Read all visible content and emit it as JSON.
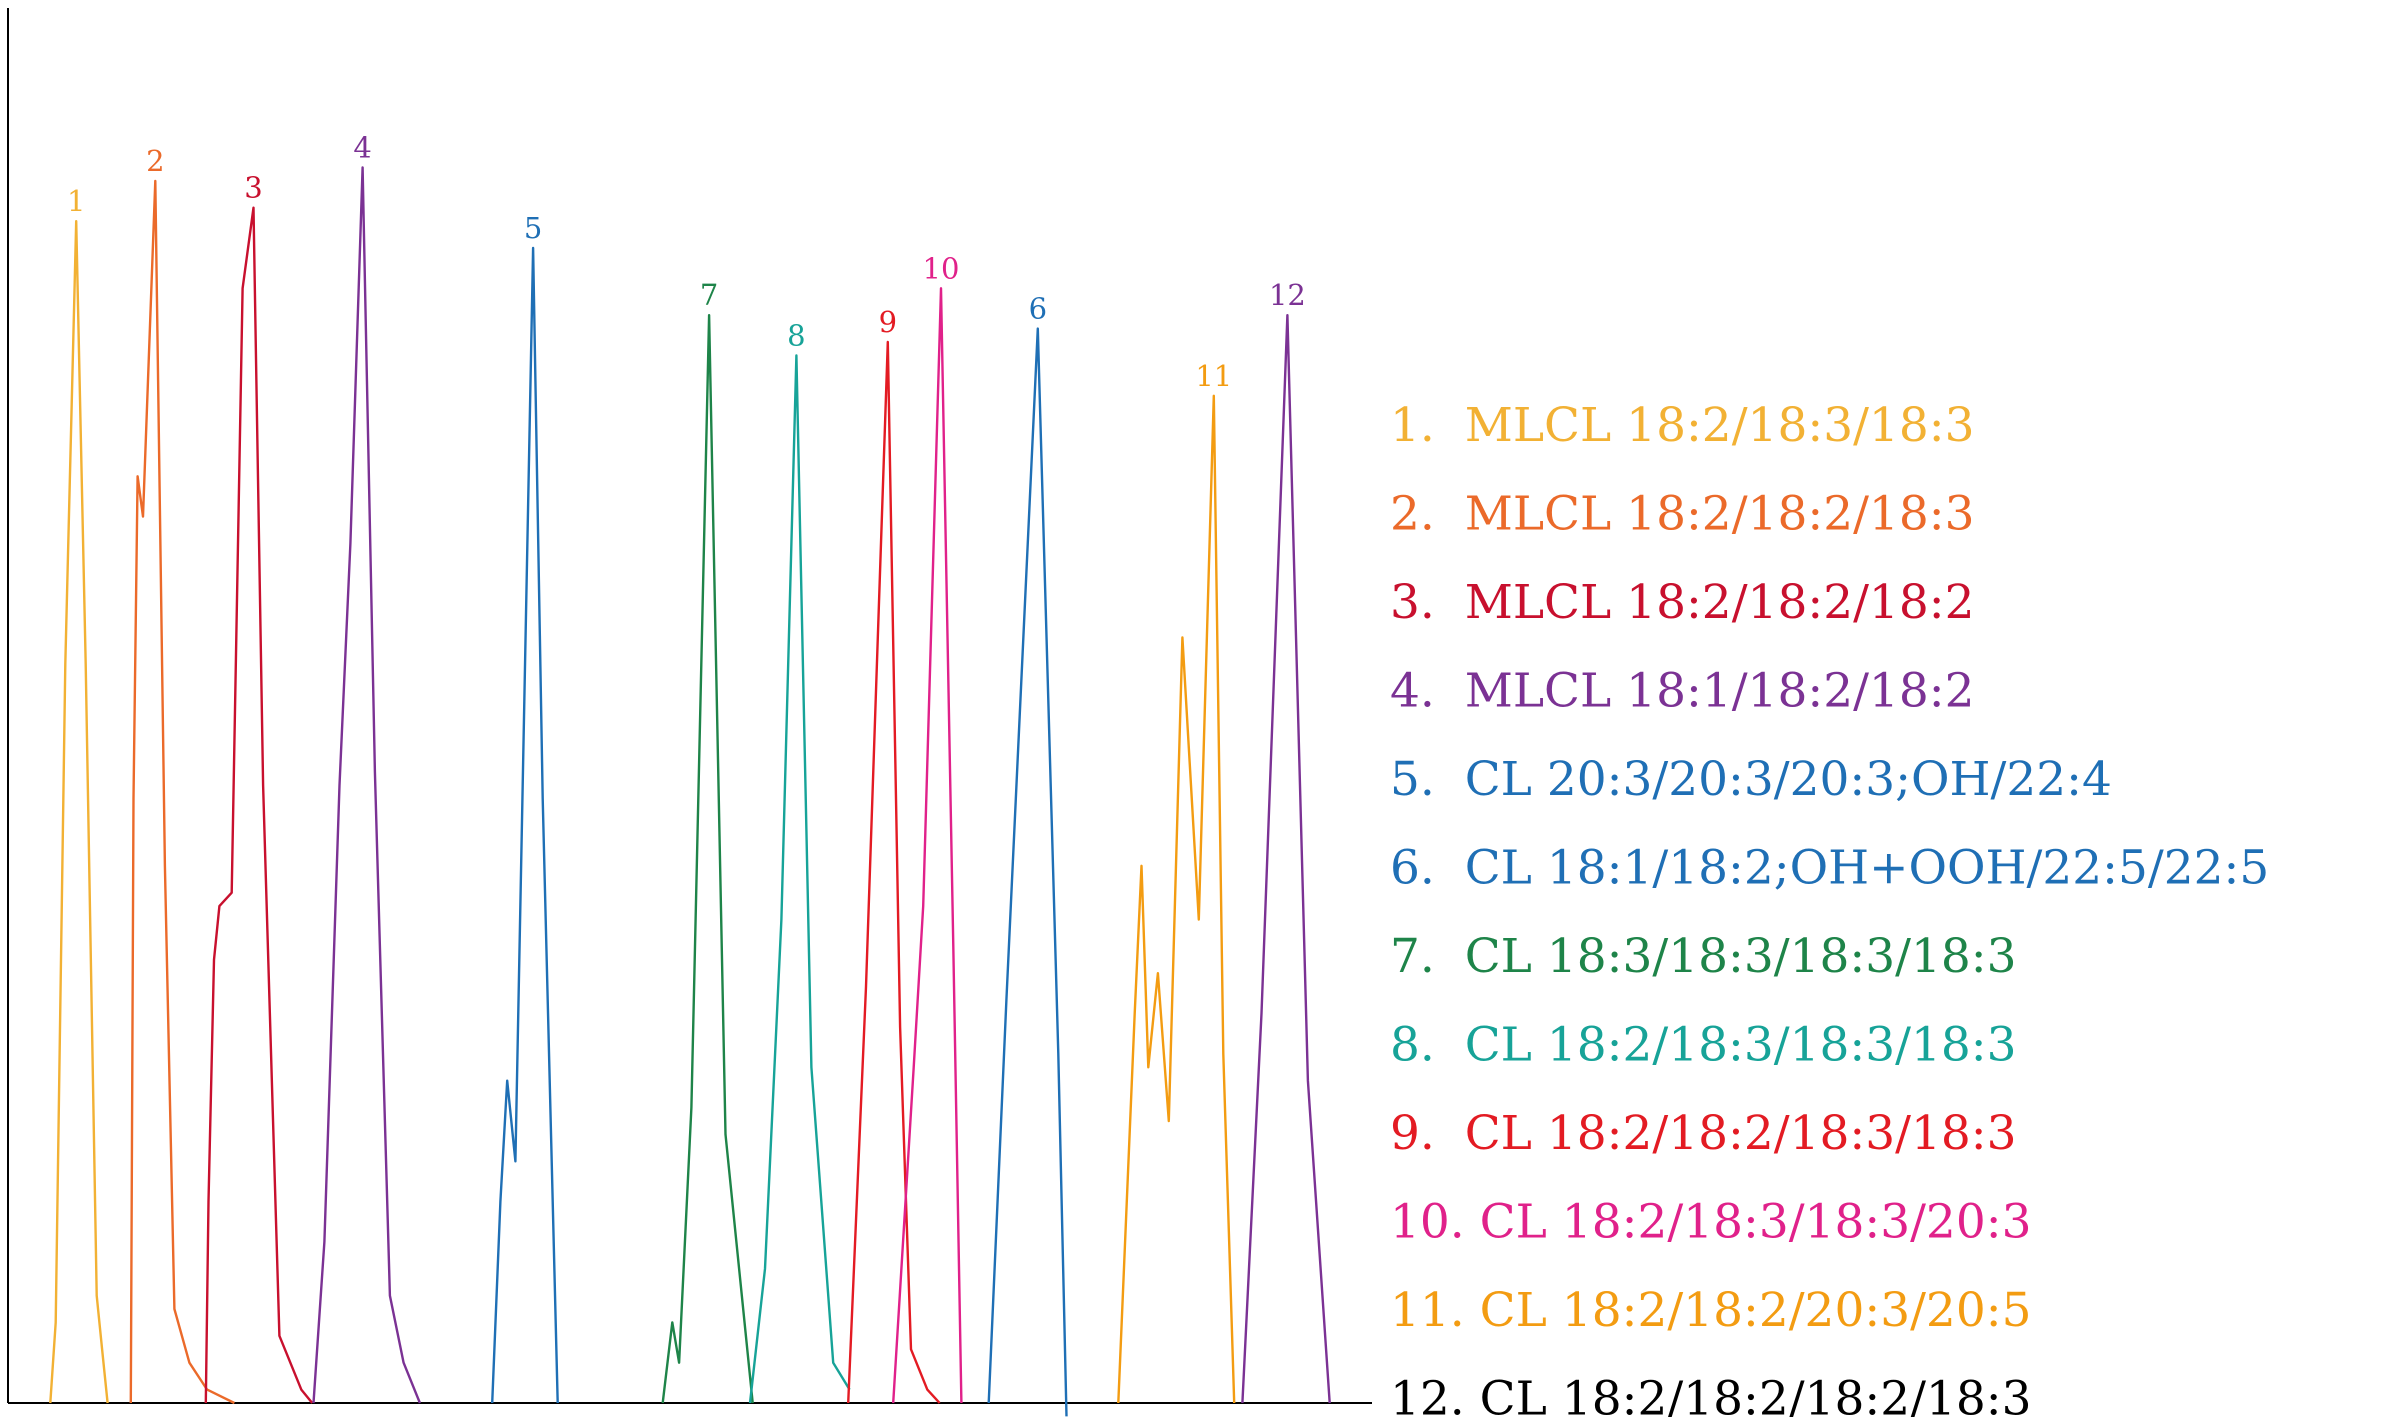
{
  "chart_data": {
    "type": "line",
    "title": "",
    "xlabel": "",
    "ylabel": "",
    "xlim": [
      0,
      100
    ],
    "ylim": [
      0,
      100
    ],
    "grid": false,
    "legend_position": "right",
    "series": [
      {
        "peak_label": "1",
        "legend": "1.  MLCL 18:2/18:3/18:3",
        "color": "#F2B134",
        "apex_x": 5.0,
        "height": 88,
        "points": [
          [
            3.1,
            0
          ],
          [
            3.5,
            6
          ],
          [
            4.2,
            55
          ],
          [
            5.0,
            88
          ],
          [
            5.7,
            55
          ],
          [
            6.5,
            8
          ],
          [
            6.9,
            4
          ],
          [
            7.3,
            0
          ]
        ]
      },
      {
        "peak_label": "2",
        "legend": "2.  MLCL 18:2/18:2/18:3",
        "color": "#EB6A2A",
        "apex_x": 10.8,
        "height": 91,
        "points": [
          [
            9.0,
            0
          ],
          [
            9.2,
            45
          ],
          [
            9.5,
            69
          ],
          [
            9.9,
            66
          ],
          [
            10.8,
            91
          ],
          [
            11.5,
            40
          ],
          [
            12.2,
            7
          ],
          [
            13.3,
            3
          ],
          [
            14.6,
            1
          ],
          [
            16.6,
            0
          ]
        ]
      },
      {
        "peak_label": "3",
        "legend": "3.  MLCL 18:2/18:2/18:2",
        "color": "#C8102E",
        "apex_x": 18.0,
        "height": 89,
        "points": [
          [
            14.5,
            0
          ],
          [
            14.7,
            15
          ],
          [
            15.1,
            33
          ],
          [
            15.5,
            37
          ],
          [
            16.4,
            38
          ],
          [
            17.2,
            83
          ],
          [
            18.0,
            89
          ],
          [
            18.7,
            46
          ],
          [
            19.9,
            5
          ],
          [
            21.5,
            1
          ],
          [
            22.3,
            0
          ]
        ]
      },
      {
        "peak_label": "4",
        "legend": "4.  MLCL 18:1/18:2/18:2",
        "color": "#7B3294",
        "apex_x": 26.0,
        "height": 92,
        "points": [
          [
            22.4,
            0
          ],
          [
            23.2,
            12
          ],
          [
            24.3,
            46
          ],
          [
            25.1,
            64
          ],
          [
            26.0,
            92
          ],
          [
            26.9,
            47
          ],
          [
            28.0,
            8
          ],
          [
            29.0,
            3
          ],
          [
            30.2,
            0
          ]
        ]
      },
      {
        "peak_label": "5",
        "legend": "5.  CL 20:3/20:3/20:3;OH/22:4",
        "color": "#1F6FB5",
        "apex_x": 38.5,
        "height": 86,
        "points": [
          [
            35.5,
            0
          ],
          [
            36.1,
            15
          ],
          [
            36.6,
            24
          ],
          [
            37.2,
            18
          ],
          [
            38.5,
            86
          ],
          [
            39.2,
            45
          ],
          [
            40.3,
            0
          ]
        ]
      },
      {
        "peak_label": "6",
        "legend": "6.  CL 18:1/18:2;OH+OOH/22:5/22:5",
        "color": "#1F6FB5",
        "apex_x": 75.5,
        "height": 80,
        "points": [
          [
            71.9,
            0
          ],
          [
            73.2,
            30
          ],
          [
            75.5,
            80
          ],
          [
            77.0,
            26
          ],
          [
            77.6,
            -1
          ]
        ]
      },
      {
        "peak_label": "7",
        "legend": "7.  CL 18:3/18:3/18:3/18:3",
        "color": "#1E8449",
        "apex_x": 51.4,
        "height": 81,
        "points": [
          [
            48.0,
            0
          ],
          [
            48.7,
            6
          ],
          [
            49.2,
            3
          ],
          [
            50.1,
            22
          ],
          [
            51.4,
            81
          ],
          [
            52.6,
            20
          ],
          [
            54.6,
            0
          ]
        ]
      },
      {
        "peak_label": "8",
        "legend": "8.  CL 18:2/18:3/18:3/18:3",
        "color": "#17A398",
        "apex_x": 57.8,
        "height": 78,
        "points": [
          [
            54.4,
            0
          ],
          [
            55.5,
            10
          ],
          [
            56.7,
            36
          ],
          [
            57.8,
            78
          ],
          [
            58.9,
            25
          ],
          [
            60.5,
            3
          ],
          [
            61.7,
            1
          ]
        ]
      },
      {
        "peak_label": "9",
        "legend": "9.  CL 18:2/18:2/18:3/18:3",
        "color": "#E31B23",
        "apex_x": 64.5,
        "height": 79,
        "points": [
          [
            61.6,
            0
          ],
          [
            62.9,
            31
          ],
          [
            64.5,
            79
          ],
          [
            65.4,
            28
          ],
          [
            66.2,
            4
          ],
          [
            67.4,
            1
          ],
          [
            68.3,
            0
          ]
        ]
      },
      {
        "peak_label": "10",
        "legend": "10. CL 18:2/18:3/18:3/20:3",
        "color": "#E0218A",
        "apex_x": 68.4,
        "height": 83,
        "points": [
          [
            64.9,
            0
          ],
          [
            66.4,
            25
          ],
          [
            67.1,
            37
          ],
          [
            68.4,
            83
          ],
          [
            69.3,
            34
          ],
          [
            69.9,
            0
          ]
        ]
      },
      {
        "peak_label": "11",
        "legend": "11. CL 18:2/18:2/20:3/20:5",
        "color": "#F39C12",
        "apex_x": 88.4,
        "height": 75,
        "points": [
          [
            81.4,
            0
          ],
          [
            82.6,
            29
          ],
          [
            83.1,
            40
          ],
          [
            83.6,
            25
          ],
          [
            84.3,
            32
          ],
          [
            85.1,
            21
          ],
          [
            86.1,
            57
          ],
          [
            87.3,
            36
          ],
          [
            88.4,
            75
          ],
          [
            89.1,
            26
          ],
          [
            89.9,
            0
          ]
        ]
      },
      {
        "peak_label": "12",
        "legend": "12. CL 18:2/18:2/18:2/18:3",
        "color": "#7B3294",
        "legend_color": "#000000",
        "apex_x": 93.8,
        "height": 81,
        "points": [
          [
            90.5,
            0
          ],
          [
            91.9,
            29
          ],
          [
            93.8,
            81
          ],
          [
            95.3,
            24
          ],
          [
            96.9,
            0
          ]
        ]
      }
    ]
  }
}
